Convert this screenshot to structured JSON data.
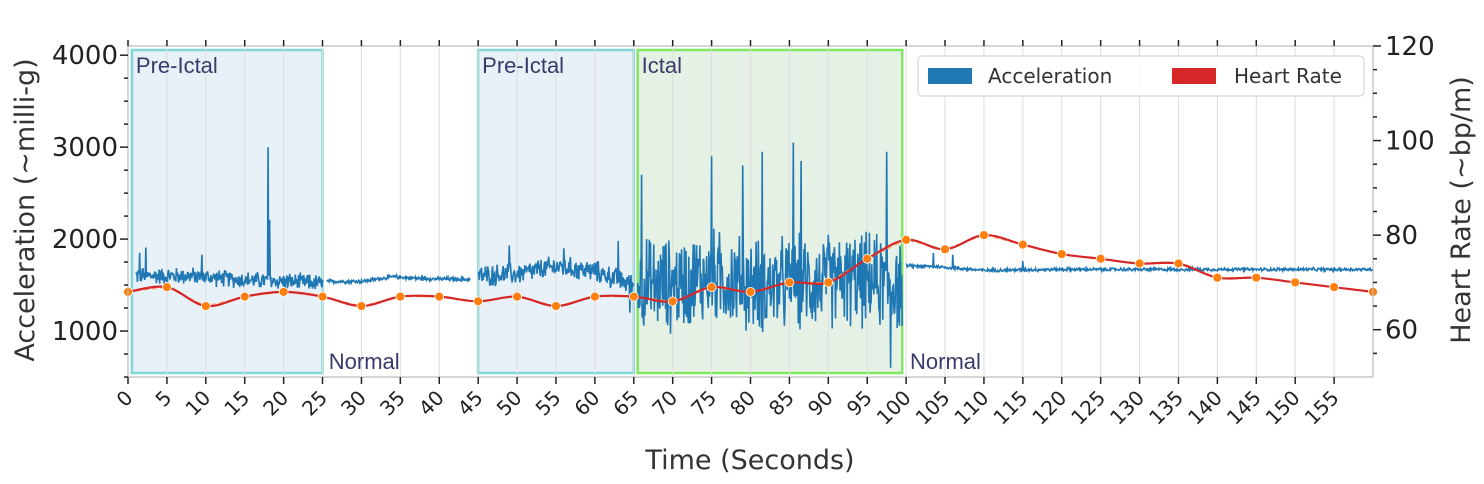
{
  "chart_data": {
    "type": "line",
    "xlabel": "Time (Seconds)",
    "ylabel_left": "Acceleration (~milli-g)",
    "ylabel_right": "Heart Rate (~bp/m)",
    "xlim": [
      0,
      160
    ],
    "ylim_left": [
      500,
      4100
    ],
    "ylim_right": [
      50,
      120
    ],
    "x_ticks": [
      0,
      5,
      10,
      15,
      20,
      25,
      30,
      35,
      40,
      45,
      50,
      55,
      60,
      65,
      70,
      75,
      80,
      85,
      90,
      95,
      100,
      105,
      110,
      115,
      120,
      125,
      130,
      135,
      140,
      145,
      150,
      155
    ],
    "y_ticks_left": [
      1000,
      2000,
      3000,
      4000
    ],
    "y_ticks_right": [
      60,
      80,
      100,
      120
    ],
    "grid": true,
    "legend": {
      "placement": "top-right",
      "entries": [
        {
          "label": "Acceleration",
          "color": "#1f77b4"
        },
        {
          "label": "Heart Rate",
          "color": "#d62728"
        }
      ]
    },
    "regions": [
      {
        "label": "Pre-Ictal",
        "x_start": 0.5,
        "x_end": 25,
        "fill": "#e8f0f8",
        "edge": "#7fd6d6"
      },
      {
        "label": "Pre-Ictal",
        "x_start": 45,
        "x_end": 65,
        "fill": "#e8f0f8",
        "edge": "#7fd6d6"
      },
      {
        "label": "Ictal",
        "x_start": 65.5,
        "x_end": 99.5,
        "fill": "#e6f1e6",
        "edge": "#80e860"
      }
    ],
    "annotations": [
      {
        "text": "Normal",
        "x": 25.8,
        "y": 600
      },
      {
        "text": "Normal",
        "x": 100.5,
        "y": 600
      }
    ],
    "heart_rate": {
      "name": "Heart Rate",
      "color": "#d62728",
      "marker_color": "#ff7f0e",
      "x": [
        0,
        5,
        10,
        15,
        20,
        25,
        30,
        35,
        40,
        45,
        50,
        55,
        60,
        65,
        70,
        75,
        80,
        85,
        90,
        95,
        100,
        105,
        110,
        115,
        120,
        125,
        130,
        135,
        140,
        145,
        150,
        155,
        160
      ],
      "y": [
        68,
        69,
        65,
        67,
        68,
        67,
        65,
        67,
        67,
        66,
        67,
        65,
        67,
        67,
        66,
        69,
        68,
        70,
        70,
        75,
        79,
        77,
        80,
        78,
        76,
        75,
        74,
        74,
        71,
        71,
        70,
        69,
        68
      ]
    },
    "acceleration": {
      "name": "Acceleration",
      "color": "#1f77b4",
      "segments": [
        {
          "x_start": 1,
          "x_end": 25,
          "base": [
            [
              1,
              1600
            ],
            [
              8,
              1600
            ],
            [
              14,
              1560
            ],
            [
              20,
              1540
            ],
            [
              25,
              1520
            ]
          ],
          "noise": 110,
          "spikes": [
            [
              1.5,
              1850
            ],
            [
              2.3,
              1900
            ],
            [
              9.5,
              1830
            ],
            [
              18,
              3000
            ],
            [
              18.2,
              2200
            ]
          ]
        },
        {
          "x_start": 25.5,
          "x_end": 44,
          "base": [
            [
              25.5,
              1540
            ],
            [
              30,
              1540
            ],
            [
              34,
              1590
            ],
            [
              38,
              1570
            ],
            [
              44,
              1560
            ]
          ],
          "noise": 25,
          "spikes": []
        },
        {
          "x_start": 45,
          "x_end": 65,
          "base": [
            [
              45,
              1600
            ],
            [
              50,
              1620
            ],
            [
              55,
              1700
            ],
            [
              60,
              1650
            ],
            [
              65,
              1500
            ]
          ],
          "noise": 140,
          "spikes": [
            [
              49,
              1930
            ],
            [
              56,
              1900
            ],
            [
              63,
              1980
            ],
            [
              64.5,
              1200
            ]
          ]
        },
        {
          "x_start": 65.5,
          "x_end": 99.5,
          "base": [
            [
              65.5,
              1500
            ],
            [
              70,
              1500
            ],
            [
              75,
              1600
            ],
            [
              80,
              1500
            ],
            [
              85,
              1500
            ],
            [
              90,
              1550
            ],
            [
              95,
              1550
            ],
            [
              99.5,
              1500
            ]
          ],
          "noise": 600,
          "spikes": [
            [
              66,
              2700
            ],
            [
              75,
              2900
            ],
            [
              79,
              2800
            ],
            [
              81.5,
              2950
            ],
            [
              85.5,
              3050
            ],
            [
              86.5,
              2850
            ],
            [
              97.5,
              2950
            ],
            [
              98,
              600
            ]
          ]
        },
        {
          "x_start": 100,
          "x_end": 160,
          "base": [
            [
              100,
              1710
            ],
            [
              104,
              1700
            ],
            [
              110,
              1660
            ],
            [
              120,
              1670
            ],
            [
              130,
              1670
            ],
            [
              140,
              1670
            ],
            [
              150,
              1670
            ],
            [
              160,
              1670
            ]
          ],
          "noise": 20,
          "spikes": [
            [
              103.5,
              1850
            ],
            [
              106,
              1830
            ],
            [
              115,
              1760
            ]
          ]
        }
      ]
    }
  }
}
